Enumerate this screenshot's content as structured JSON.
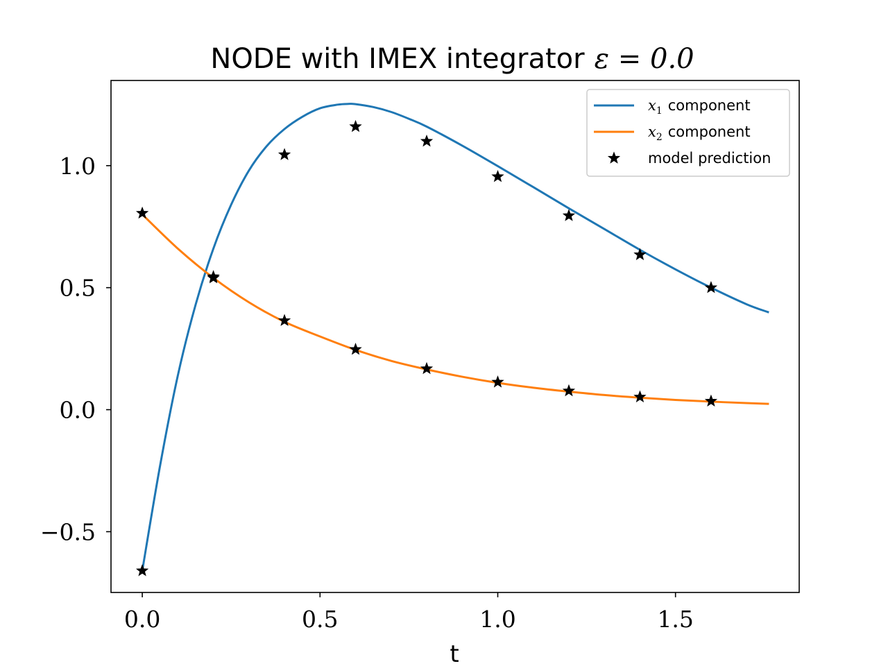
{
  "chart_data": {
    "type": "line",
    "title": "NODE with IMEX integrator",
    "title_math": "ε = 0.0",
    "xlabel": "t",
    "ylabel": "",
    "xlim": [
      -0.088,
      1.848
    ],
    "ylim": [
      -0.749,
      1.349
    ],
    "xticks": [
      0.0,
      0.5,
      1.0,
      1.5
    ],
    "xtick_labels": [
      "0.0",
      "0.5",
      "1.0",
      "1.5"
    ],
    "yticks": [
      -0.5,
      0.0,
      0.5,
      1.0
    ],
    "ytick_labels": [
      "−0.5",
      "0.0",
      "0.5",
      "1.0"
    ],
    "grid": false,
    "legend": {
      "position": "top-right",
      "entries": [
        {
          "math": "x",
          "sub": "1",
          "text": "component",
          "color": "#1f77b4",
          "kind": "line"
        },
        {
          "math": "x",
          "sub": "2",
          "text": "component",
          "color": "#ff7f0e",
          "kind": "line"
        },
        {
          "math": "",
          "sub": "",
          "text": "model prediction",
          "color": "#000000",
          "kind": "star"
        }
      ]
    },
    "series": [
      {
        "color": "#1f77b4",
        "x": [
          0.0,
          0.05,
          0.1,
          0.15,
          0.2,
          0.25,
          0.3,
          0.35,
          0.4,
          0.45,
          0.5,
          0.55,
          0.58,
          0.6,
          0.65,
          0.7,
          0.75,
          0.8,
          0.9,
          1.0,
          1.1,
          1.2,
          1.3,
          1.4,
          1.5,
          1.6,
          1.7,
          1.76
        ],
        "y": [
          -0.66,
          -0.23,
          0.14,
          0.43,
          0.66,
          0.84,
          0.98,
          1.08,
          1.15,
          1.2,
          1.235,
          1.25,
          1.253,
          1.252,
          1.24,
          1.22,
          1.192,
          1.16,
          1.082,
          0.998,
          0.912,
          0.825,
          0.74,
          0.655,
          0.575,
          0.5,
          0.432,
          0.4
        ]
      },
      {
        "color": "#ff7f0e",
        "x": [
          0.0,
          0.1,
          0.2,
          0.3,
          0.4,
          0.5,
          0.6,
          0.7,
          0.8,
          0.9,
          1.0,
          1.1,
          1.2,
          1.3,
          1.4,
          1.5,
          1.6,
          1.7,
          1.76
        ],
        "y": [
          0.8,
          0.66,
          0.54,
          0.44,
          0.36,
          0.3,
          0.245,
          0.2,
          0.165,
          0.135,
          0.11,
          0.09,
          0.074,
          0.06,
          0.049,
          0.04,
          0.033,
          0.027,
          0.024
        ]
      },
      {
        "marker": "star",
        "color": "#000000",
        "x": [
          0.0,
          0.2,
          0.4,
          0.6,
          0.8,
          1.0,
          1.2,
          1.4,
          1.6
        ],
        "y": [
          -0.66,
          0.545,
          1.045,
          1.16,
          1.1,
          0.955,
          0.795,
          0.635,
          0.5
        ]
      },
      {
        "marker": "star",
        "color": "#000000",
        "x": [
          0.0,
          0.2,
          0.4,
          0.6,
          0.8,
          1.0,
          1.2,
          1.4,
          1.6
        ],
        "y": [
          0.805,
          0.54,
          0.365,
          0.247,
          0.168,
          0.113,
          0.077,
          0.052,
          0.035
        ]
      }
    ]
  }
}
